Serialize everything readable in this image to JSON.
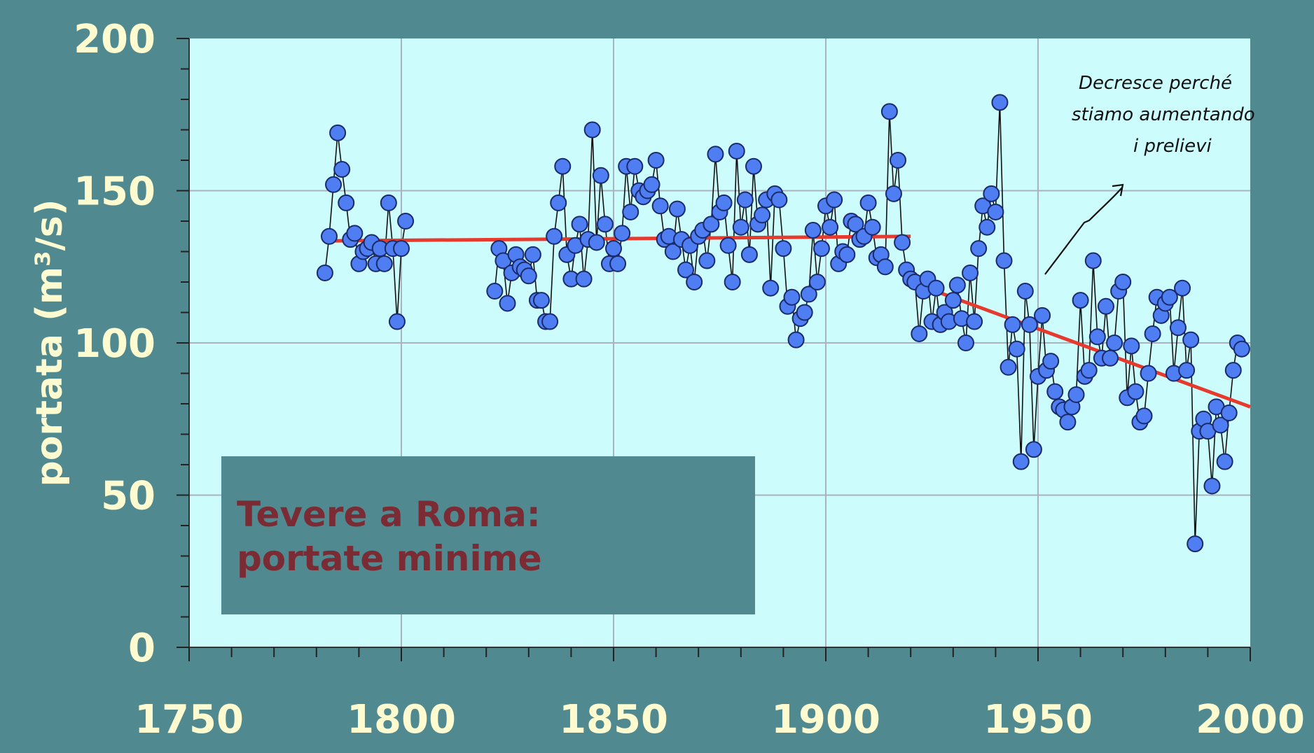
{
  "colors": {
    "background": "#508a90",
    "plot_bg": "#ccfcfc",
    "grid": "#a9b3c0",
    "axis_text": "#fdfbcf",
    "point_fill": "#4f7ef2",
    "point_stroke": "#1a2a6a",
    "trend": "#e63a2e",
    "box_fill": "#508a90",
    "box_text": "#7a2b33"
  },
  "chart_data": {
    "type": "scatter",
    "title": "",
    "xlabel": "",
    "ylabel": "portata (m³/s)",
    "xlim": [
      1750,
      2000
    ],
    "ylim": [
      0,
      200
    ],
    "x_ticks": [
      1750,
      1800,
      1850,
      1900,
      1950,
      2000
    ],
    "y_ticks": [
      0,
      50,
      100,
      150,
      200
    ],
    "grid": true,
    "legend": "none",
    "annotation_box": {
      "lines": [
        "Tevere a Roma:",
        "portate minime"
      ]
    },
    "handwritten_note": {
      "lines": [
        "Decresce perché",
        "stiamo aumentando",
        "i prelievi"
      ]
    },
    "series": [
      {
        "values": [
          [
            1782,
            123
          ],
          [
            1783,
            135
          ],
          [
            1784,
            152
          ],
          [
            1785,
            169
          ],
          [
            1786,
            157
          ],
          [
            1787,
            146
          ],
          [
            1788,
            134
          ],
          [
            1789,
            136
          ],
          [
            1790,
            126
          ],
          [
            1791,
            130
          ],
          [
            1792,
            131
          ],
          [
            1793,
            133
          ],
          [
            1794,
            126
          ],
          [
            1795,
            131
          ],
          [
            1796,
            126
          ],
          [
            1797,
            146
          ],
          [
            1798,
            131
          ],
          [
            1799,
            107
          ],
          [
            1800,
            131
          ],
          [
            1801,
            140
          ],
          [
            1822,
            117
          ],
          [
            1823,
            131
          ],
          [
            1824,
            127
          ],
          [
            1825,
            113
          ],
          [
            1826,
            123
          ],
          [
            1827,
            129
          ],
          [
            1828,
            125
          ],
          [
            1829,
            124
          ],
          [
            1830,
            122
          ],
          [
            1831,
            129
          ],
          [
            1832,
            114
          ],
          [
            1833,
            114
          ],
          [
            1834,
            107
          ],
          [
            1835,
            107
          ],
          [
            1836,
            135
          ],
          [
            1837,
            146
          ],
          [
            1838,
            158
          ],
          [
            1839,
            129
          ],
          [
            1840,
            121
          ],
          [
            1841,
            132
          ],
          [
            1842,
            139
          ],
          [
            1843,
            121
          ],
          [
            1844,
            134
          ],
          [
            1845,
            170
          ],
          [
            1846,
            133
          ],
          [
            1847,
            155
          ],
          [
            1848,
            139
          ],
          [
            1849,
            126
          ],
          [
            1850,
            131
          ],
          [
            1851,
            126
          ],
          [
            1852,
            136
          ],
          [
            1853,
            158
          ],
          [
            1854,
            143
          ],
          [
            1855,
            158
          ],
          [
            1856,
            150
          ],
          [
            1857,
            148
          ],
          [
            1858,
            150
          ],
          [
            1859,
            152
          ],
          [
            1860,
            160
          ],
          [
            1861,
            145
          ],
          [
            1862,
            134
          ],
          [
            1863,
            135
          ],
          [
            1864,
            130
          ],
          [
            1865,
            144
          ],
          [
            1866,
            134
          ],
          [
            1867,
            124
          ],
          [
            1868,
            132
          ],
          [
            1869,
            120
          ],
          [
            1870,
            135
          ],
          [
            1871,
            137
          ],
          [
            1872,
            127
          ],
          [
            1873,
            139
          ],
          [
            1874,
            162
          ],
          [
            1875,
            143
          ],
          [
            1876,
            146
          ],
          [
            1877,
            132
          ],
          [
            1878,
            120
          ],
          [
            1879,
            163
          ],
          [
            1880,
            138
          ],
          [
            1881,
            147
          ],
          [
            1882,
            129
          ],
          [
            1883,
            158
          ],
          [
            1884,
            139
          ],
          [
            1885,
            142
          ],
          [
            1886,
            147
          ],
          [
            1887,
            118
          ],
          [
            1888,
            149
          ],
          [
            1889,
            147
          ],
          [
            1890,
            131
          ],
          [
            1891,
            112
          ],
          [
            1892,
            115
          ],
          [
            1893,
            101
          ],
          [
            1894,
            108
          ],
          [
            1895,
            110
          ],
          [
            1896,
            116
          ],
          [
            1897,
            137
          ],
          [
            1898,
            120
          ],
          [
            1899,
            131
          ],
          [
            1900,
            145
          ],
          [
            1901,
            138
          ],
          [
            1902,
            147
          ],
          [
            1903,
            126
          ],
          [
            1904,
            130
          ],
          [
            1905,
            129
          ],
          [
            1906,
            140
          ],
          [
            1907,
            139
          ],
          [
            1908,
            134
          ],
          [
            1909,
            135
          ],
          [
            1910,
            146
          ],
          [
            1911,
            138
          ],
          [
            1912,
            128
          ],
          [
            1913,
            129
          ],
          [
            1914,
            125
          ],
          [
            1915,
            176
          ],
          [
            1916,
            149
          ],
          [
            1917,
            160
          ],
          [
            1918,
            133
          ],
          [
            1919,
            124
          ],
          [
            1920,
            121
          ],
          [
            1921,
            120
          ],
          [
            1922,
            103
          ],
          [
            1923,
            117
          ],
          [
            1924,
            121
          ],
          [
            1925,
            107
          ],
          [
            1926,
            118
          ],
          [
            1927,
            106
          ],
          [
            1928,
            110
          ],
          [
            1929,
            107
          ],
          [
            1930,
            114
          ],
          [
            1931,
            119
          ],
          [
            1932,
            108
          ],
          [
            1933,
            100
          ],
          [
            1934,
            123
          ],
          [
            1935,
            107
          ],
          [
            1936,
            131
          ],
          [
            1937,
            145
          ],
          [
            1938,
            138
          ],
          [
            1939,
            149
          ],
          [
            1940,
            143
          ],
          [
            1941,
            179
          ],
          [
            1942,
            127
          ],
          [
            1943,
            92
          ],
          [
            1944,
            106
          ],
          [
            1945,
            98
          ],
          [
            1946,
            61
          ],
          [
            1947,
            117
          ],
          [
            1948,
            106
          ],
          [
            1949,
            65
          ],
          [
            1950,
            89
          ],
          [
            1951,
            109
          ],
          [
            1952,
            91
          ],
          [
            1953,
            94
          ],
          [
            1954,
            84
          ],
          [
            1955,
            79
          ],
          [
            1956,
            78
          ],
          [
            1957,
            74
          ],
          [
            1958,
            79
          ],
          [
            1959,
            83
          ],
          [
            1960,
            114
          ],
          [
            1961,
            89
          ],
          [
            1962,
            91
          ],
          [
            1963,
            127
          ],
          [
            1964,
            102
          ],
          [
            1965,
            95
          ],
          [
            1966,
            112
          ],
          [
            1967,
            95
          ],
          [
            1968,
            100
          ],
          [
            1969,
            117
          ],
          [
            1970,
            120
          ],
          [
            1971,
            82
          ],
          [
            1972,
            99
          ],
          [
            1973,
            84
          ],
          [
            1974,
            74
          ],
          [
            1975,
            76
          ],
          [
            1976,
            90
          ],
          [
            1977,
            103
          ],
          [
            1978,
            115
          ],
          [
            1979,
            109
          ],
          [
            1980,
            113
          ],
          [
            1981,
            115
          ],
          [
            1982,
            90
          ],
          [
            1983,
            105
          ],
          [
            1984,
            118
          ],
          [
            1985,
            91
          ],
          [
            1986,
            101
          ],
          [
            1987,
            34
          ],
          [
            1988,
            71
          ],
          [
            1989,
            75
          ],
          [
            1990,
            71
          ],
          [
            1991,
            53
          ],
          [
            1992,
            79
          ],
          [
            1993,
            73
          ],
          [
            1994,
            61
          ],
          [
            1995,
            77
          ],
          [
            1996,
            91
          ],
          [
            1997,
            100
          ],
          [
            1998,
            98
          ]
        ]
      }
    ],
    "trend_lines": [
      {
        "from": [
          1782,
          133.5
        ],
        "to": [
          1920,
          135
        ]
      },
      {
        "from": [
          1920,
          120
        ],
        "to": [
          2000,
          79
        ]
      }
    ]
  }
}
